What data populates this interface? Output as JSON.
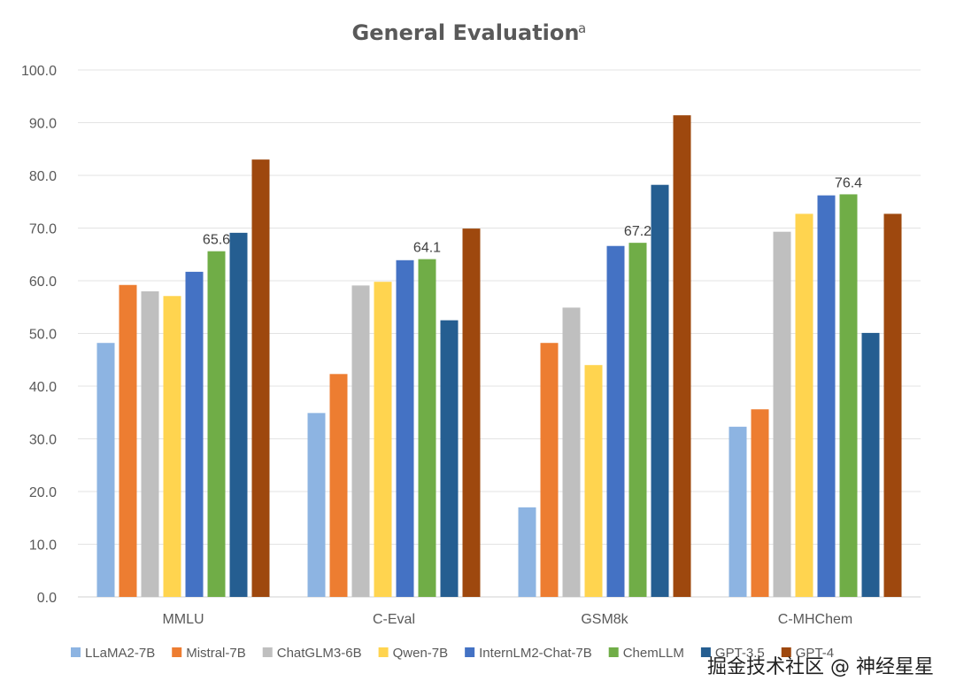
{
  "chart_data": {
    "type": "bar",
    "title": "General Evaluation",
    "title_superscript": "a",
    "xlabel": "",
    "ylabel": "",
    "ylim": [
      0,
      100
    ],
    "yticks": [
      "0.0",
      "10.0",
      "20.0",
      "30.0",
      "40.0",
      "50.0",
      "60.0",
      "70.0",
      "80.0",
      "90.0",
      "100.0"
    ],
    "grid": true,
    "legend_position": "bottom",
    "categories": [
      "MMLU",
      "C-Eval",
      "GSM8k",
      "C-MHChem"
    ],
    "series": [
      {
        "name": "LLaMA2-7B",
        "color": "#8DB4E2",
        "values": [
          48.2,
          34.9,
          17.0,
          32.3
        ]
      },
      {
        "name": "Mistral-7B",
        "color": "#ED7D31",
        "values": [
          59.2,
          42.3,
          48.2,
          35.6
        ]
      },
      {
        "name": "ChatGLM3-6B",
        "color": "#BFBFBF",
        "values": [
          58.0,
          59.1,
          54.9,
          69.3
        ]
      },
      {
        "name": "Qwen-7B",
        "color": "#FFD44F",
        "values": [
          57.1,
          59.8,
          44.0,
          72.7
        ]
      },
      {
        "name": "InternLM2-Chat-7B",
        "color": "#4472C4",
        "values": [
          61.7,
          63.9,
          66.6,
          76.2
        ]
      },
      {
        "name": "ChemLLM",
        "color": "#70AD47",
        "values": [
          65.6,
          64.1,
          67.2,
          76.4
        ]
      },
      {
        "name": "GPT-3.5",
        "color": "#255E91",
        "values": [
          69.1,
          52.5,
          78.2,
          50.1
        ]
      },
      {
        "name": "GPT-4",
        "color": "#9E480E",
        "values": [
          83.0,
          69.9,
          91.4,
          72.7
        ]
      }
    ],
    "data_labels": [
      {
        "series": "ChemLLM",
        "category": "MMLU",
        "text": "65.6"
      },
      {
        "series": "ChemLLM",
        "category": "C-Eval",
        "text": "64.1"
      },
      {
        "series": "ChemLLM",
        "category": "GSM8k",
        "text": "67.2"
      },
      {
        "series": "ChemLLM",
        "category": "C-MHChem",
        "text": "76.4"
      }
    ]
  },
  "watermark": "掘金技术社区 @ 神经星星"
}
